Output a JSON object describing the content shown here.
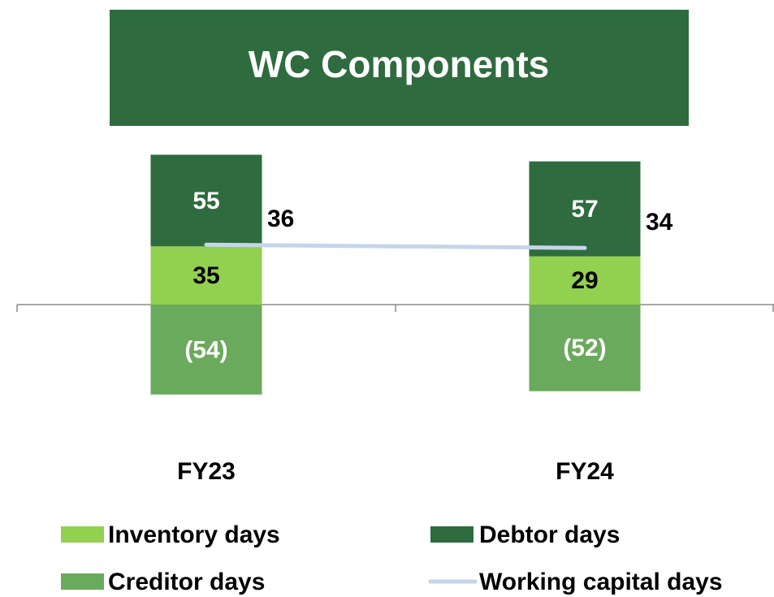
{
  "chart_data": {
    "type": "bar",
    "stacked": true,
    "title": "WC Components",
    "categories": [
      "FY23",
      "FY24"
    ],
    "ylim": [
      -80,
      100
    ],
    "series": [
      {
        "name": "Inventory days",
        "color": "#92d050",
        "values": [
          35,
          29
        ],
        "label_color": "#000000"
      },
      {
        "name": "Debtor days",
        "color": "#2e6b3e",
        "values": [
          55,
          57
        ],
        "label_color": "#ffffff"
      },
      {
        "name": "Creditor days",
        "color": "#6aaa5c",
        "values": [
          -54,
          -52
        ],
        "value_labels": [
          "(54)",
          "(52)"
        ],
        "label_color": "#ffffff"
      },
      {
        "name": "Working capital days",
        "type": "line",
        "color": "#c5d5ea",
        "values": [
          36,
          34
        ],
        "label_color": "#000000"
      }
    ]
  }
}
